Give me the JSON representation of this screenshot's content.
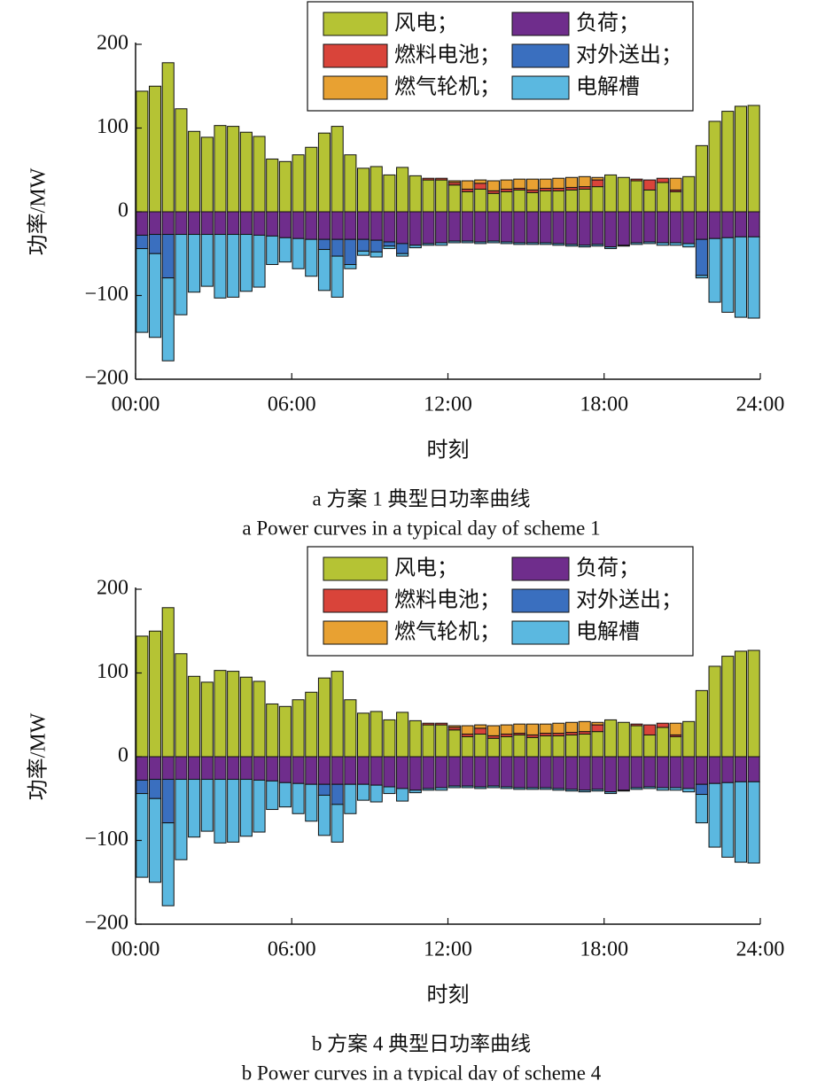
{
  "chart_data": [
    {
      "type": "stacked_bar",
      "title": "a 方案 1 典型日功率曲线",
      "subtitle": "a Power curves in a typical day of scheme 1",
      "xlabel": "时刻",
      "ylabel": "功率/MW",
      "categories": [
        null,
        null,
        null,
        null,
        null,
        null,
        null,
        null,
        null,
        null,
        null,
        null,
        null,
        null,
        null,
        null,
        null,
        null,
        null,
        null,
        null,
        null,
        null,
        null,
        null,
        null,
        null,
        null,
        null,
        null,
        null,
        null,
        null,
        null,
        null,
        null,
        null,
        null,
        null,
        null,
        null,
        null,
        null,
        null,
        null,
        null,
        null,
        null
      ],
      "xlim": [
        0,
        24
      ],
      "xticks": [
        {
          "value": 0,
          "label": "00:00"
        },
        {
          "value": 6,
          "label": "06:00"
        },
        {
          "value": 12,
          "label": "12:00"
        },
        {
          "value": 18,
          "label": "18:00"
        },
        {
          "value": 24,
          "label": "24:00"
        }
      ],
      "ylim": [
        -200,
        200
      ],
      "yticks": [
        {
          "value": -200,
          "label": "−200"
        },
        {
          "value": -100,
          "label": "−100"
        },
        0,
        100,
        200
      ],
      "legend": "top",
      "series": [
        {
          "name": "风电；",
          "color": "#b5c334",
          "values": [
            144,
            150,
            178,
            123,
            96,
            89,
            103,
            102,
            95,
            90,
            63,
            60,
            68,
            77,
            94,
            102,
            68,
            52,
            54,
            44,
            53,
            43,
            38,
            38,
            32,
            24,
            27,
            22,
            24,
            26,
            23,
            25,
            25,
            26,
            27,
            30,
            44,
            41,
            37,
            26,
            35,
            24,
            42,
            79,
            108,
            120,
            126,
            127
          ]
        },
        {
          "name": "负荷；",
          "color": "#6f2d8c",
          "values": [
            -28,
            -27,
            -27,
            -27,
            -27,
            -27,
            -27,
            -27,
            -27,
            -28,
            -29,
            -31,
            -32,
            -33,
            -33,
            -33,
            -33,
            -33,
            -34,
            -36,
            -38,
            -40,
            -38,
            -37,
            -35,
            -35,
            -36,
            -35,
            -36,
            -37,
            -37,
            -37,
            -38,
            -39,
            -40,
            -39,
            -42,
            -40,
            -37,
            -36,
            -37,
            -37,
            -38,
            -33,
            -32,
            -31,
            -30,
            -30
          ]
        },
        {
          "name": "燃料电池；",
          "color": "#d9443a",
          "values": [
            0,
            0,
            0,
            0,
            0,
            0,
            0,
            0,
            0,
            0,
            0,
            0,
            0,
            0,
            0,
            0,
            0,
            0,
            0,
            0,
            0,
            0,
            2,
            2,
            3,
            3,
            7,
            3,
            3,
            2,
            3,
            3,
            3,
            3,
            3,
            8,
            0,
            0,
            2,
            12,
            5,
            2,
            0,
            0,
            0,
            0,
            0,
            0
          ]
        },
        {
          "name": "对外送出；",
          "color": "#3a6fbf",
          "values": [
            -16,
            -23,
            -52,
            0,
            0,
            0,
            0,
            0,
            0,
            0,
            0,
            0,
            0,
            0,
            -12,
            -20,
            -30,
            -14,
            -14,
            -5,
            -12,
            0,
            0,
            0,
            0,
            0,
            0,
            0,
            0,
            0,
            0,
            0,
            0,
            0,
            0,
            0,
            0,
            0,
            0,
            0,
            0,
            0,
            0,
            -43,
            0,
            0,
            0,
            0
          ]
        },
        {
          "name": "燃气轮机；",
          "color": "#e8a132",
          "values": [
            0,
            0,
            0,
            0,
            0,
            0,
            0,
            0,
            0,
            0,
            0,
            0,
            0,
            0,
            0,
            0,
            0,
            0,
            0,
            0,
            0,
            0,
            0,
            0,
            2,
            10,
            4,
            12,
            11,
            11,
            13,
            11,
            12,
            12,
            12,
            3,
            0,
            0,
            0,
            0,
            0,
            14,
            0,
            0,
            0,
            0,
            0,
            0
          ]
        },
        {
          "name": "电解槽",
          "color": "#5bb8e0",
          "values": [
            -100,
            -100,
            -99,
            -96,
            -69,
            -62,
            -76,
            -75,
            -68,
            -62,
            -34,
            -29,
            -36,
            -44,
            -49,
            -49,
            -5,
            -5,
            -6,
            -3,
            -3,
            -3,
            -2,
            -3,
            -2,
            -2,
            -2,
            -2,
            -2,
            -2,
            -2,
            -2,
            -2,
            -2,
            -2,
            -2,
            -2,
            -1,
            -2,
            -2,
            -3,
            -3,
            -4,
            -3,
            -76,
            -89,
            -96,
            -97
          ]
        }
      ]
    },
    {
      "type": "stacked_bar",
      "title": "b 方案 4 典型日功率曲线",
      "subtitle": "b Power curves in a typical day of scheme 4",
      "xlabel": "时刻",
      "ylabel": "功率/MW",
      "categories": [
        null,
        null,
        null,
        null,
        null,
        null,
        null,
        null,
        null,
        null,
        null,
        null,
        null,
        null,
        null,
        null,
        null,
        null,
        null,
        null,
        null,
        null,
        null,
        null,
        null,
        null,
        null,
        null,
        null,
        null,
        null,
        null,
        null,
        null,
        null,
        null,
        null,
        null,
        null,
        null,
        null,
        null,
        null,
        null,
        null,
        null,
        null,
        null
      ],
      "xlim": [
        0,
        24
      ],
      "xticks": [
        {
          "value": 0,
          "label": "00:00"
        },
        {
          "value": 6,
          "label": "06:00"
        },
        {
          "value": 12,
          "label": "12:00"
        },
        {
          "value": 18,
          "label": "18:00"
        },
        {
          "value": 24,
          "label": "24:00"
        }
      ],
      "ylim": [
        -200,
        200
      ],
      "yticks": [
        {
          "value": -200,
          "label": "−200"
        },
        {
          "value": -100,
          "label": "−100"
        },
        0,
        100,
        200
      ],
      "legend": "top",
      "series": [
        {
          "name": "风电；",
          "color": "#b5c334",
          "values": [
            144,
            150,
            178,
            123,
            96,
            89,
            103,
            102,
            95,
            90,
            63,
            60,
            68,
            77,
            94,
            102,
            68,
            52,
            54,
            44,
            53,
            43,
            38,
            38,
            32,
            24,
            27,
            22,
            24,
            26,
            23,
            25,
            25,
            26,
            27,
            30,
            44,
            41,
            37,
            26,
            35,
            24,
            42,
            79,
            108,
            120,
            126,
            127
          ]
        },
        {
          "name": "负荷；",
          "color": "#6f2d8c",
          "values": [
            -28,
            -27,
            -27,
            -27,
            -27,
            -27,
            -27,
            -27,
            -27,
            -28,
            -29,
            -31,
            -32,
            -33,
            -33,
            -33,
            -33,
            -33,
            -34,
            -36,
            -38,
            -40,
            -38,
            -37,
            -35,
            -35,
            -36,
            -35,
            -36,
            -37,
            -37,
            -37,
            -38,
            -39,
            -40,
            -39,
            -42,
            -40,
            -37,
            -36,
            -37,
            -37,
            -38,
            -33,
            -32,
            -31,
            -30,
            -30
          ]
        },
        {
          "name": "燃料电池；",
          "color": "#d9443a",
          "values": [
            0,
            0,
            0,
            0,
            0,
            0,
            0,
            0,
            0,
            0,
            0,
            0,
            0,
            0,
            0,
            0,
            0,
            0,
            0,
            0,
            0,
            0,
            2,
            2,
            3,
            3,
            7,
            3,
            3,
            2,
            3,
            3,
            3,
            3,
            3,
            8,
            0,
            0,
            2,
            12,
            5,
            2,
            0,
            0,
            0,
            0,
            0,
            0
          ]
        },
        {
          "name": "对外送出；",
          "color": "#3a6fbf",
          "values": [
            -16,
            -23,
            -52,
            0,
            0,
            0,
            0,
            0,
            0,
            0,
            0,
            0,
            0,
            0,
            -13,
            -24,
            0,
            0,
            0,
            0,
            0,
            0,
            0,
            0,
            0,
            0,
            0,
            0,
            0,
            0,
            0,
            0,
            0,
            0,
            0,
            0,
            0,
            0,
            0,
            0,
            0,
            0,
            0,
            -12,
            0,
            0,
            0,
            0
          ]
        },
        {
          "name": "燃气轮机；",
          "color": "#e8a132",
          "values": [
            0,
            0,
            0,
            0,
            0,
            0,
            0,
            0,
            0,
            0,
            0,
            0,
            0,
            0,
            0,
            0,
            0,
            0,
            0,
            0,
            0,
            0,
            0,
            0,
            2,
            10,
            4,
            12,
            11,
            11,
            13,
            11,
            12,
            12,
            12,
            3,
            0,
            0,
            0,
            0,
            0,
            14,
            0,
            0,
            0,
            0,
            0,
            0
          ]
        },
        {
          "name": "电解槽",
          "color": "#5bb8e0",
          "values": [
            -100,
            -100,
            -99,
            -96,
            -69,
            -62,
            -76,
            -75,
            -68,
            -62,
            -34,
            -29,
            -36,
            -44,
            -48,
            -45,
            -35,
            -19,
            -20,
            -8,
            -15,
            -3,
            -2,
            -3,
            -2,
            -2,
            -2,
            -2,
            -2,
            -2,
            -2,
            -2,
            -2,
            -2,
            -2,
            -2,
            -2,
            -1,
            -2,
            -2,
            -3,
            -3,
            -4,
            -34,
            -76,
            -89,
            -96,
            -97
          ]
        }
      ]
    }
  ]
}
